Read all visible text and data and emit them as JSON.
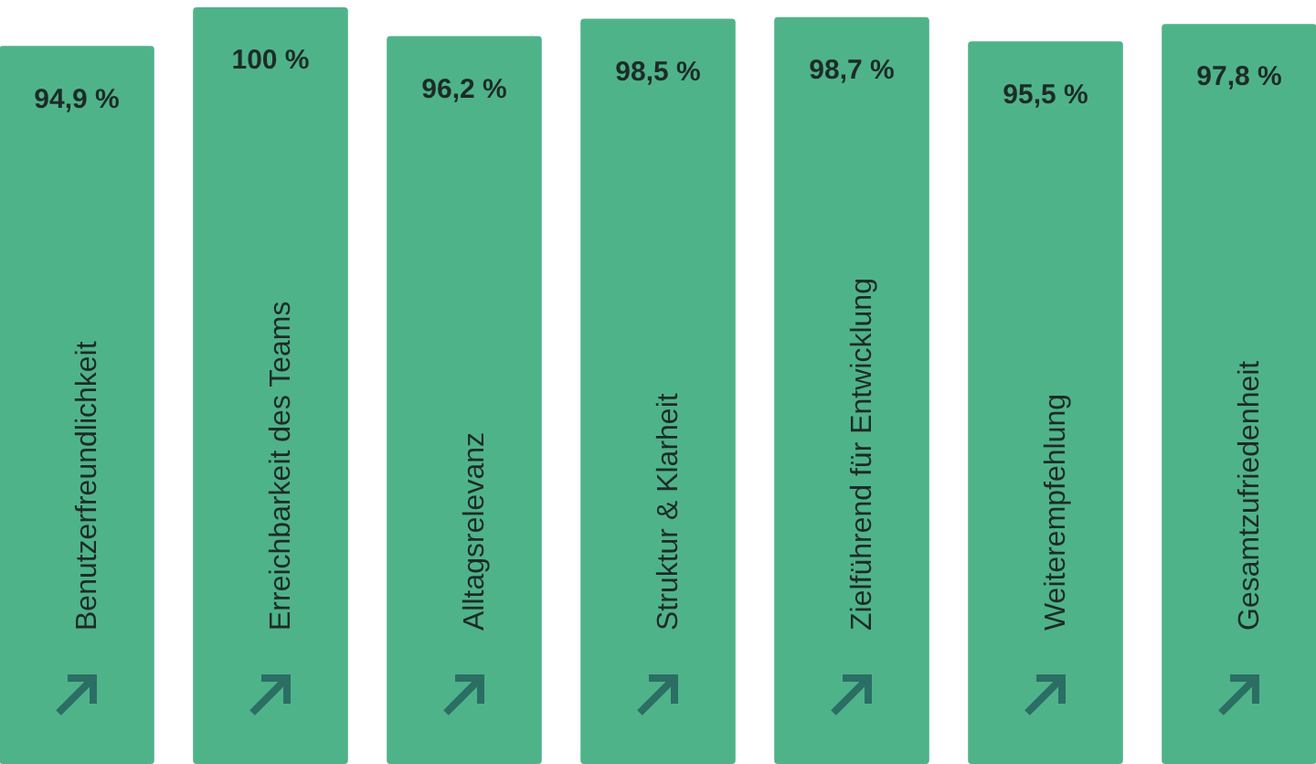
{
  "chart_data": {
    "type": "bar",
    "categories": [
      "Benutzerfreundlichkeit",
      "Erreichbarkeit des Teams",
      "Alltagsrelevanz",
      "Struktur & Klarheit",
      "Zielführend für Entwicklung",
      "Weiterempfehlung",
      "Gesamtzufriedenheit"
    ],
    "values": [
      94.9,
      100,
      96.2,
      98.5,
      98.7,
      95.5,
      97.8
    ],
    "value_labels": [
      "94,9 %",
      "100 %",
      "96,2 %",
      "98,5 %",
      "98,7 %",
      "95,5 %",
      "97,8 %"
    ],
    "color": "#4fb38a"
  }
}
